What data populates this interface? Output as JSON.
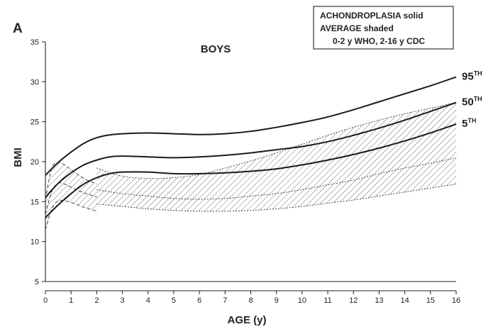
{
  "chart_data": {
    "type": "line",
    "panel_label": "A",
    "title": "BOYS",
    "xlabel": "AGE (y)",
    "ylabel": "BMI",
    "xlim": [
      0,
      16
    ],
    "ylim": [
      5,
      35
    ],
    "xticks": [
      0,
      1,
      2,
      3,
      4,
      5,
      6,
      7,
      8,
      9,
      10,
      11,
      12,
      13,
      14,
      15,
      16
    ],
    "yticks": [
      5,
      10,
      15,
      20,
      25,
      30,
      35
    ],
    "legend": {
      "position": "top-right",
      "lines": [
        "ACHONDROPLASIA solid",
        "AVERAGE shaded",
        "0-2 y WHO, 2-16 y CDC"
      ]
    },
    "achondroplasia_series": [
      {
        "name": "95th",
        "label_main": "95",
        "label_sup": "TH",
        "x": [
          0,
          0.5,
          1,
          1.5,
          2,
          2.5,
          3,
          4,
          5,
          6,
          7,
          8,
          9,
          10,
          11,
          12,
          13,
          14,
          15,
          16
        ],
        "y": [
          18.3,
          19.9,
          21.2,
          22.3,
          23.0,
          23.35,
          23.5,
          23.6,
          23.5,
          23.4,
          23.5,
          23.8,
          24.3,
          24.9,
          25.6,
          26.5,
          27.5,
          28.5,
          29.5,
          30.6
        ]
      },
      {
        "name": "50th",
        "label_main": "50",
        "label_sup": "TH",
        "x": [
          0,
          0.5,
          1,
          1.5,
          2,
          2.5,
          3,
          4,
          5,
          6,
          7,
          8,
          9,
          10,
          11,
          12,
          13,
          14,
          15,
          16
        ],
        "y": [
          15.5,
          17.3,
          18.6,
          19.6,
          20.2,
          20.6,
          20.7,
          20.6,
          20.5,
          20.6,
          20.8,
          21.1,
          21.5,
          21.9,
          22.5,
          23.3,
          24.2,
          25.2,
          26.3,
          27.4
        ]
      },
      {
        "name": "5th",
        "label_main": "5",
        "label_sup": "TH",
        "x": [
          0,
          0.5,
          1,
          1.5,
          2,
          2.5,
          3,
          4,
          5,
          6,
          7,
          8,
          9,
          10,
          11,
          12,
          13,
          14,
          15,
          16
        ],
        "y": [
          13.0,
          14.6,
          16.0,
          17.2,
          18.0,
          18.5,
          18.7,
          18.7,
          18.5,
          18.5,
          18.6,
          18.8,
          19.1,
          19.6,
          20.2,
          20.9,
          21.7,
          22.6,
          23.6,
          24.7
        ]
      }
    ],
    "average_who_0_2": {
      "x": [
        0,
        0.25,
        0.5,
        0.75,
        1,
        1.5,
        2
      ],
      "upper": [
        15.3,
        19.2,
        19.9,
        19.6,
        19.0,
        17.9,
        17.2
      ],
      "median": [
        13.4,
        16.3,
        17.3,
        17.2,
        16.8,
        16.1,
        15.6
      ],
      "lower": [
        11.5,
        14.1,
        15.1,
        15.1,
        14.9,
        14.3,
        13.8
      ]
    },
    "average_cdc_2_16": {
      "x": [
        2,
        3,
        4,
        5,
        6,
        7,
        8,
        9,
        10,
        11,
        12,
        13,
        14,
        15,
        16
      ],
      "upper": [
        19.2,
        18.2,
        17.9,
        18.0,
        18.4,
        19.2,
        20.1,
        21.1,
        22.2,
        23.3,
        24.3,
        25.2,
        26.0,
        26.7,
        27.4
      ],
      "median": [
        16.5,
        16.0,
        15.7,
        15.4,
        15.3,
        15.4,
        15.7,
        16.0,
        16.5,
        17.1,
        17.7,
        18.5,
        19.2,
        19.8,
        20.5
      ],
      "lower": [
        14.7,
        14.4,
        14.1,
        13.9,
        13.8,
        13.8,
        13.9,
        14.1,
        14.4,
        14.8,
        15.2,
        15.7,
        16.2,
        16.7,
        17.2
      ]
    }
  }
}
